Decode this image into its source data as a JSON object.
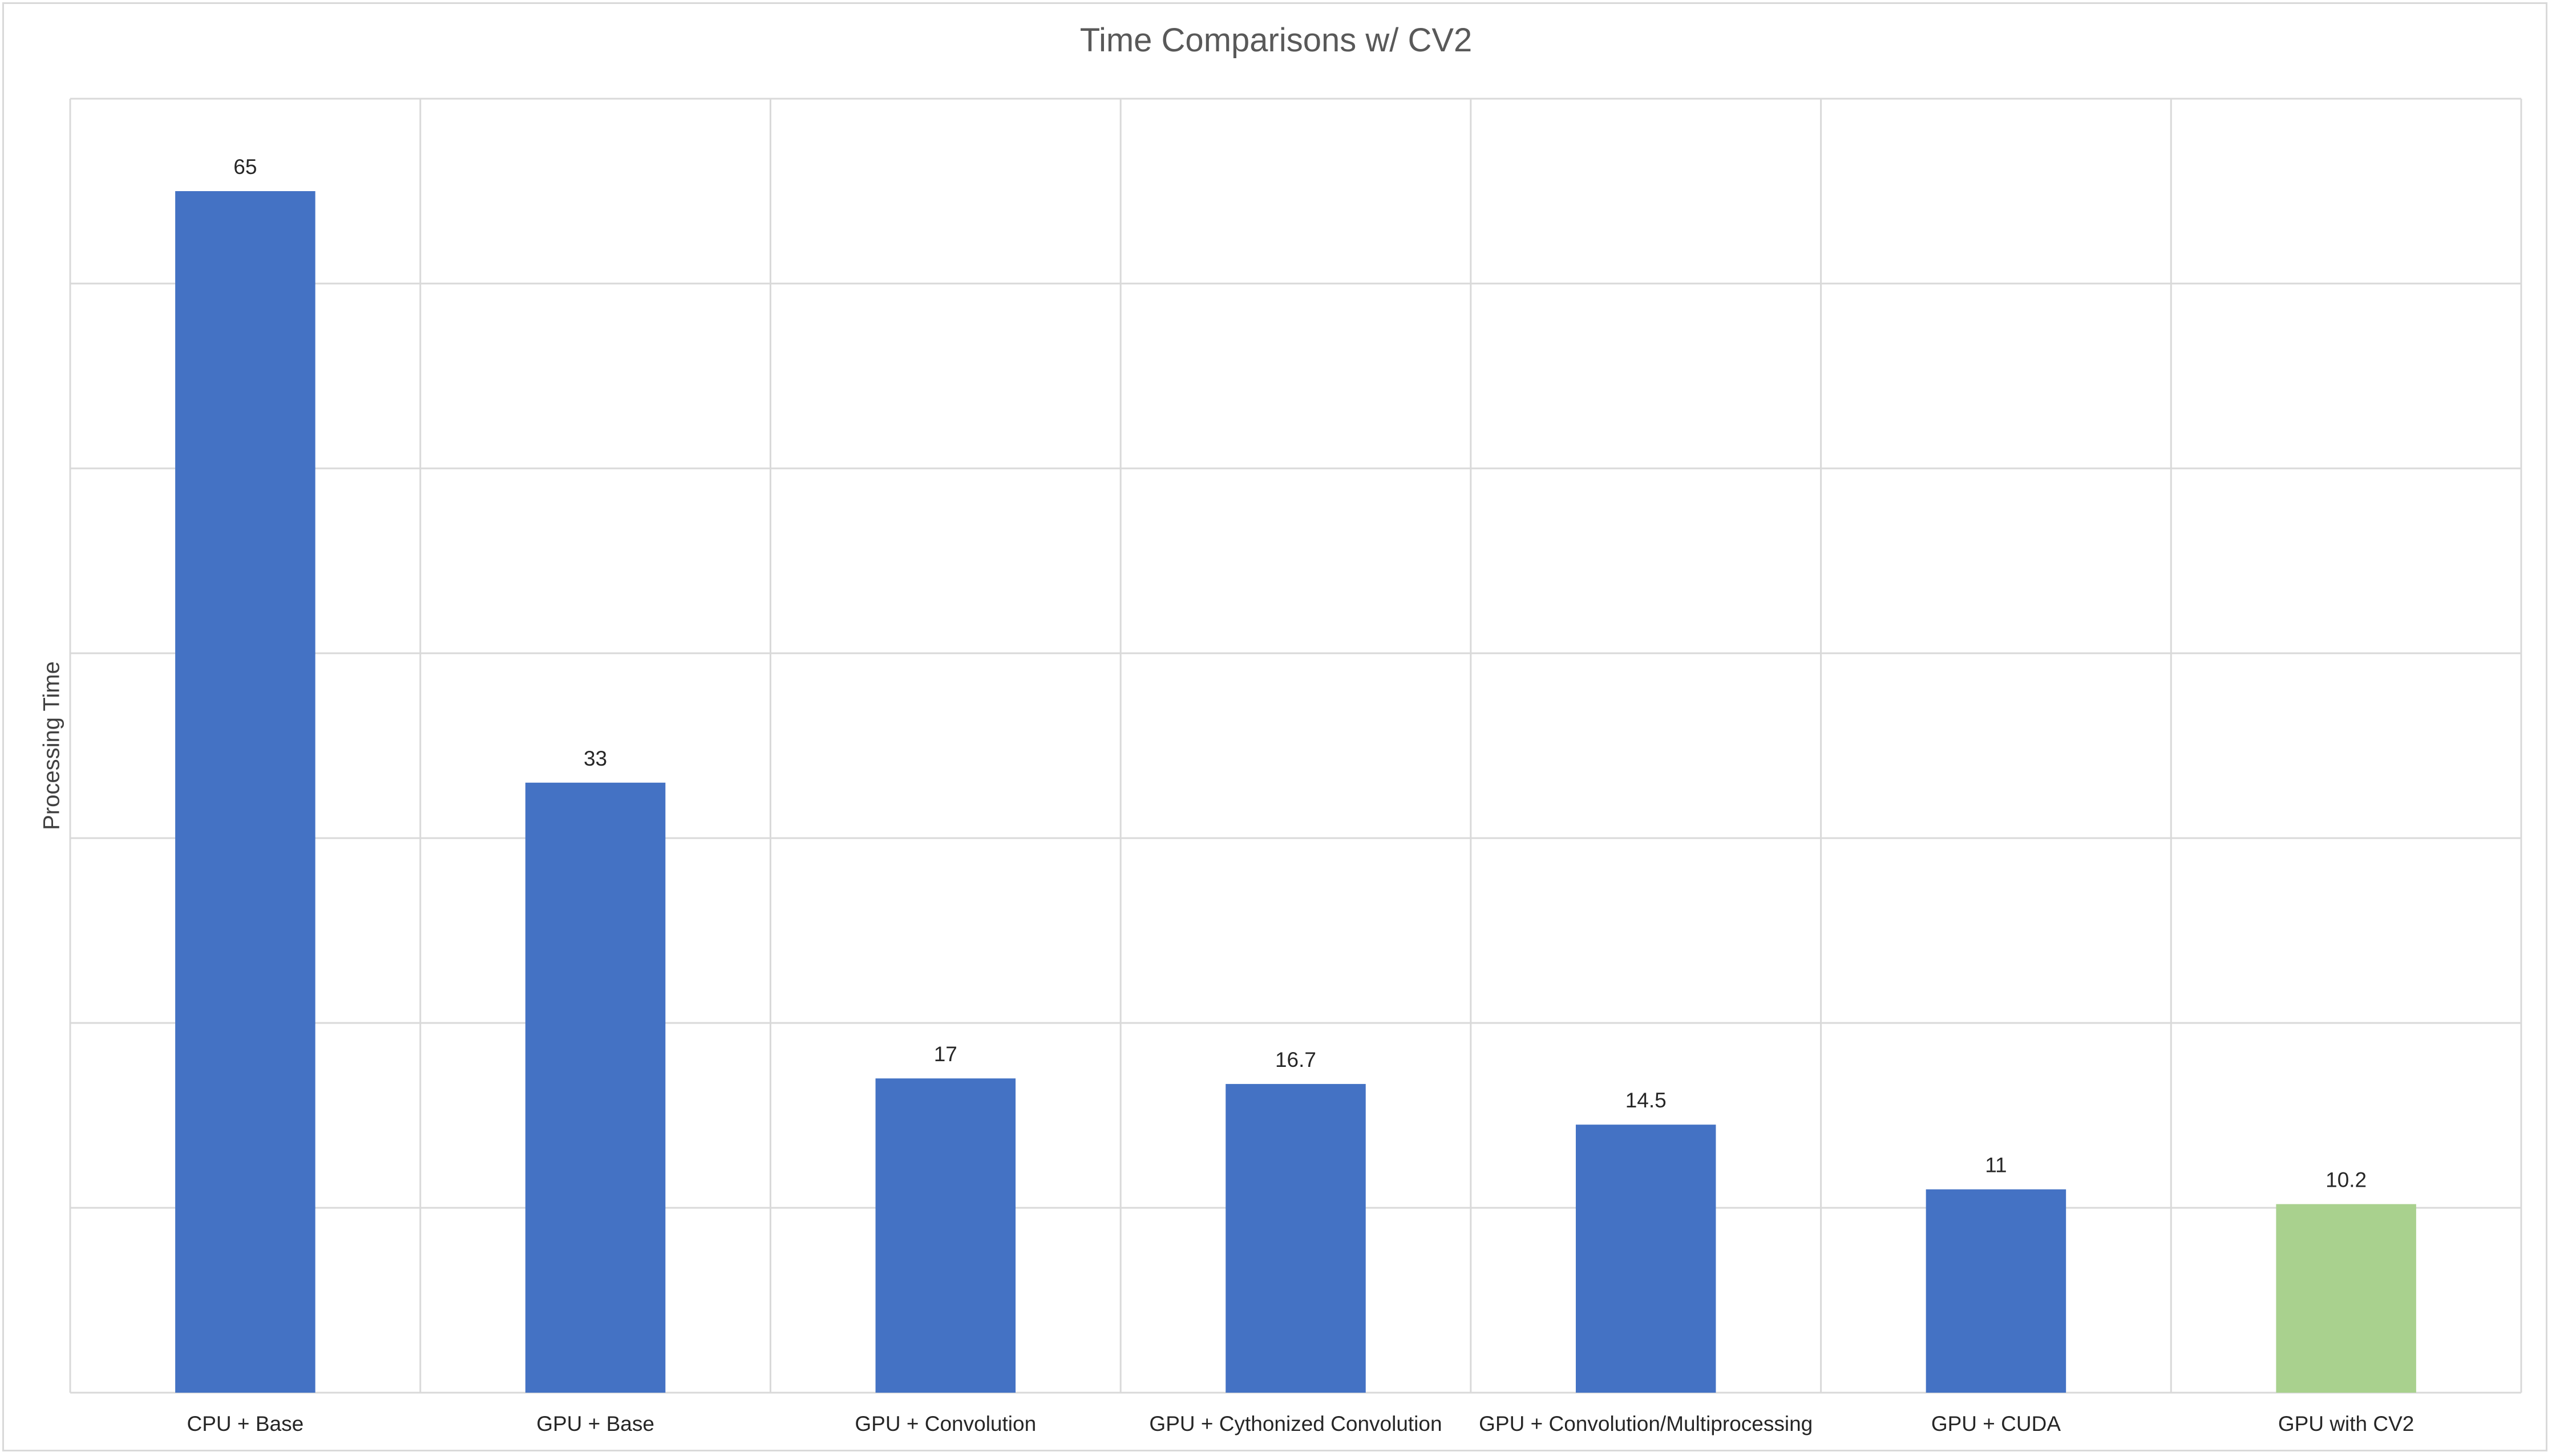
{
  "chart_data": {
    "type": "bar",
    "title": "Time Comparisons w/ CV2",
    "xlabel": "",
    "ylabel": "Processing Time",
    "categories": [
      "CPU + Base",
      "GPU + Base",
      "GPU + Convolution",
      "GPU + Cythonized Convolution",
      "GPU + Convolution/Multiprocessing",
      "GPU + CUDA",
      "GPU with CV2"
    ],
    "values": [
      65,
      33,
      17,
      16.7,
      14.5,
      11,
      10.2
    ],
    "data_labels": [
      "65",
      "33",
      "17",
      "16.7",
      "14.5",
      "11",
      "10.2"
    ],
    "ylim": [
      0,
      70
    ],
    "y_gridline_step": 10,
    "y_tick_labels_shown": false,
    "grid": true,
    "legend": "none",
    "colors": {
      "default_bar": "#4472c4",
      "highlight_bar": "#a9d18e",
      "gridline": "#d9d9d9"
    },
    "highlight_index": 6
  }
}
